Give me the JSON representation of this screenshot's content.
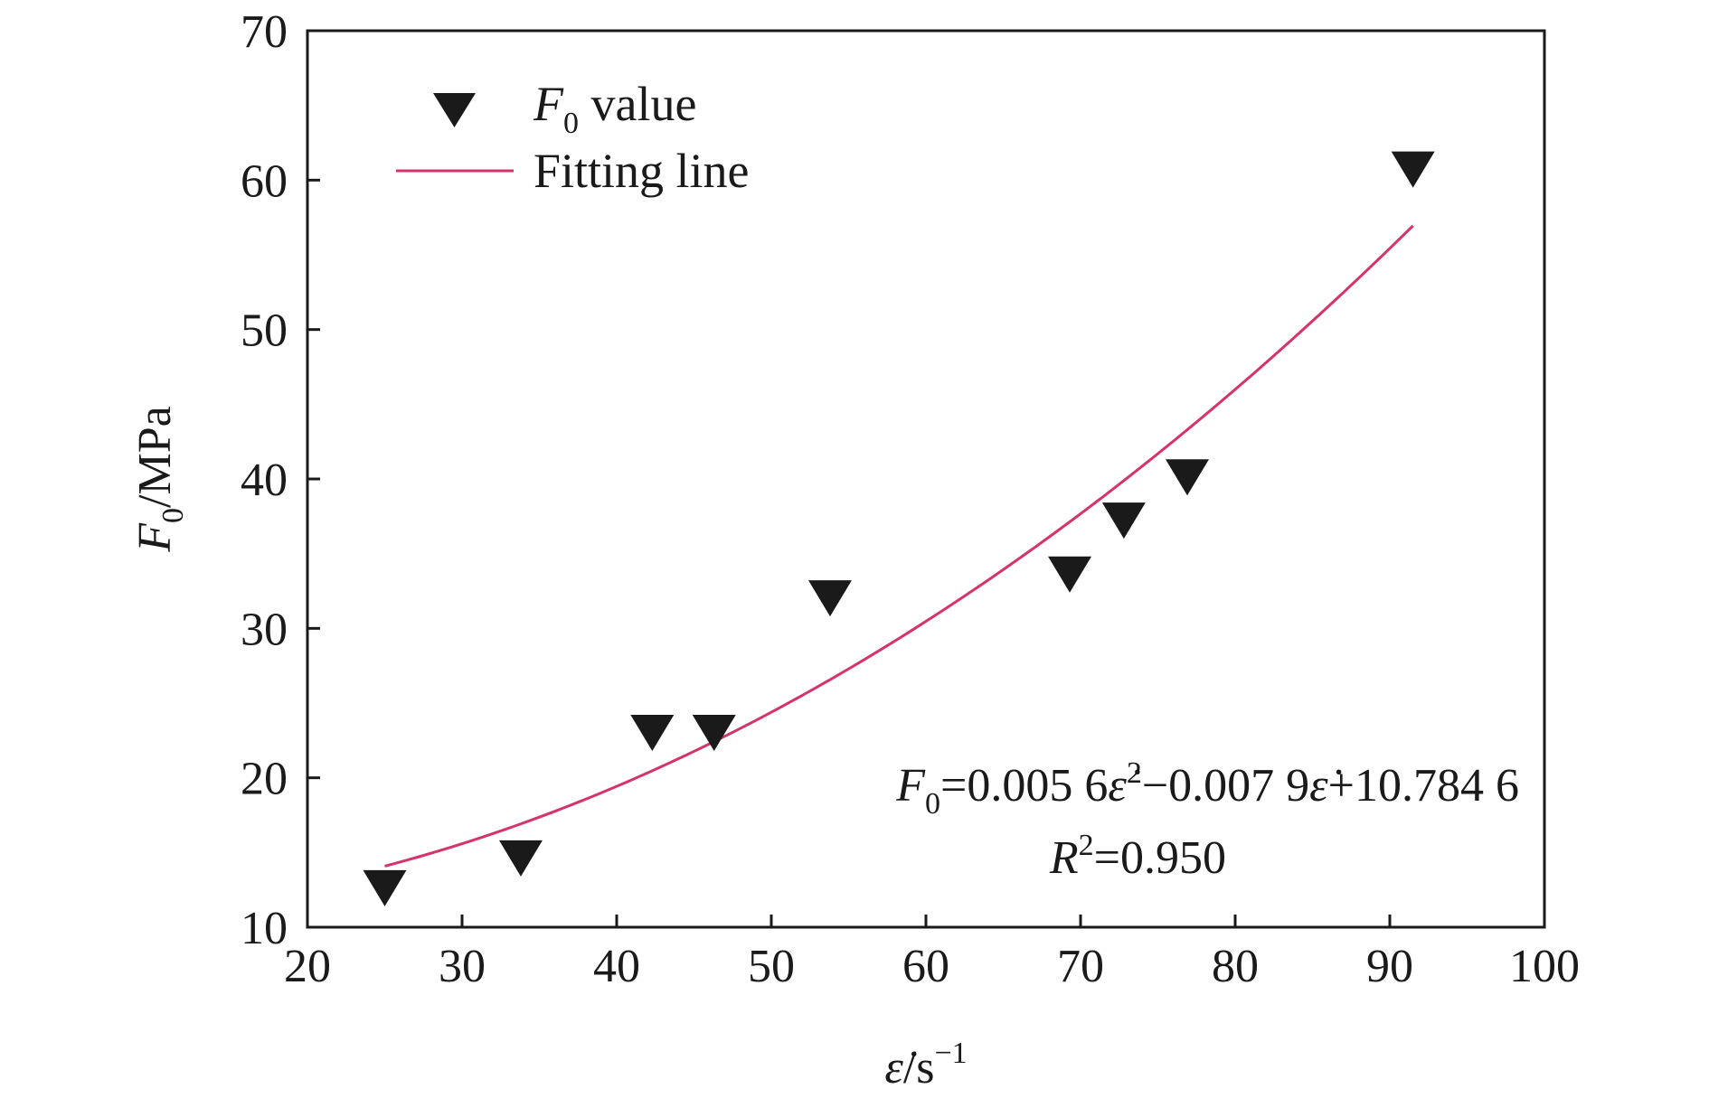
{
  "colors": {
    "fit_line": "#d6336c",
    "marker": "#1a1a1a",
    "axis": "#1a1a1a",
    "background": "#ffffff"
  },
  "chart_data": {
    "type": "scatter",
    "xlabel": {
      "symbol": "ε̇",
      "unit": "/s",
      "unit_sup": "−1"
    },
    "ylabel": {
      "symbol": "F",
      "sub": "0",
      "unit": "/MPa"
    },
    "xlim": [
      20,
      100
    ],
    "ylim": [
      10,
      70
    ],
    "xticks": [
      20,
      30,
      40,
      50,
      60,
      70,
      80,
      90,
      100
    ],
    "yticks": [
      10,
      20,
      30,
      40,
      50,
      60,
      70
    ],
    "grid": false,
    "legend_position": "top-left",
    "series": [
      {
        "name": "F0 value",
        "legend": {
          "symbol": "F",
          "sub": "0",
          "text": " value"
        },
        "marker": "down-triangle",
        "x": [
          25.0,
          33.8,
          42.3,
          46.3,
          53.8,
          69.3,
          72.8,
          76.9,
          91.5
        ],
        "y": [
          12.8,
          14.8,
          23.2,
          23.2,
          32.2,
          33.8,
          37.4,
          40.3,
          60.9
        ]
      },
      {
        "name": "Fitting line",
        "legend": {
          "text": "Fitting line"
        },
        "type": "line",
        "coefficients": {
          "a": 0.0056,
          "b": -0.0079,
          "c": 10.7846
        },
        "x_range": [
          25.0,
          91.5
        ]
      }
    ],
    "annotations": {
      "equation": {
        "lhs": "F",
        "lhs_sub": "0",
        "part1": "=0.005 6",
        "eps1": "ε̇",
        "sup": "2",
        "part2": "−0.007 9",
        "eps2": "ε̇",
        "part3": "+10.784 6"
      },
      "r_squared": {
        "symbol": "R",
        "sup": "2",
        "value": "=0.950"
      }
    }
  }
}
